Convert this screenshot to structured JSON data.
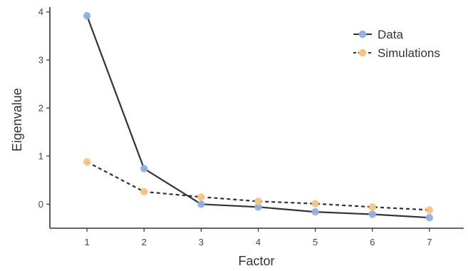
{
  "chart_data": {
    "type": "line",
    "title": "",
    "xlabel": "Factor",
    "ylabel": "Eigenvalue",
    "x": [
      1,
      2,
      3,
      4,
      5,
      6,
      7
    ],
    "xlim": [
      0.35,
      7.6
    ],
    "ylim": [
      -0.5,
      4.1
    ],
    "x_ticks": [
      "1",
      "2",
      "3",
      "4",
      "5",
      "6",
      "7"
    ],
    "y_ticks": [
      "0",
      "1",
      "2",
      "3",
      "4"
    ],
    "grid": false,
    "legend_position": "top-right",
    "series": [
      {
        "name": "Data",
        "values": [
          3.92,
          0.74,
          0.0,
          -0.06,
          -0.16,
          -0.21,
          -0.28
        ],
        "line_style": "solid",
        "marker_color": "#8fb1e6",
        "line_color": "#333333"
      },
      {
        "name": "Simulations",
        "values": [
          0.88,
          0.26,
          0.15,
          0.06,
          0.01,
          -0.06,
          -0.12
        ],
        "line_style": "dashed",
        "marker_color": "#f6c47e",
        "line_color": "#333333"
      }
    ]
  }
}
